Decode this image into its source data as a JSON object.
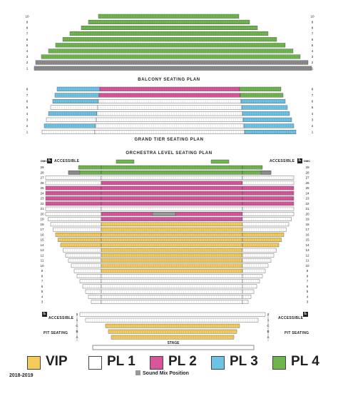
{
  "balcony": {
    "title": "BALCONY SEATING PLAN",
    "rows": [
      "10",
      "9",
      "8",
      "7",
      "6",
      "5",
      "4",
      "3",
      "2",
      "1"
    ],
    "colors": [
      "green",
      "green",
      "green",
      "green",
      "green",
      "green",
      "green",
      "green",
      "gray",
      "gray"
    ]
  },
  "grand_tier": {
    "title": "GRAND TIER SEATING PLAN",
    "rows": [
      "8",
      "7",
      "6",
      "5",
      "4",
      "3",
      "2",
      "1"
    ]
  },
  "orchestra": {
    "title": "ORCHESTRA LEVEL SEATING PLAN",
    "accessible_label": "ACCESSIBLE",
    "dmc_label": "DMC",
    "rows": [
      "29",
      "28",
      "27",
      "26",
      "25",
      "24",
      "23",
      "22",
      "21",
      "20",
      "19",
      "18",
      "17",
      "16",
      "15",
      "14",
      "13",
      "12",
      "11",
      "10",
      "9",
      "8",
      "7",
      "6",
      "5",
      "4",
      "3"
    ],
    "pit_rows": [
      "2",
      "1",
      "C",
      "B",
      "A"
    ],
    "pit_seating_label": "PIT SEATING",
    "stage_label": "STAGE"
  },
  "legend": {
    "items": [
      {
        "label": "VIP",
        "color": "#f5cc5a"
      },
      {
        "label": "PL 1",
        "color": "#ffffff"
      },
      {
        "label": "PL 2",
        "color": "#d8559b"
      },
      {
        "label": "PL 3",
        "color": "#6dc3e6"
      },
      {
        "label": "PL 4",
        "color": "#6fb54e"
      }
    ],
    "sound_mix_label": "Sound Mix Position",
    "sound_mix_color": "#999999"
  },
  "season": "2018-2019",
  "colors": {
    "vip": "#f5cc5a",
    "pl1": "#ffffff",
    "pl2": "#d8559b",
    "pl3": "#6dc3e6",
    "pl4": "#6fb54e",
    "sound": "#999999",
    "sold": "#555555"
  }
}
